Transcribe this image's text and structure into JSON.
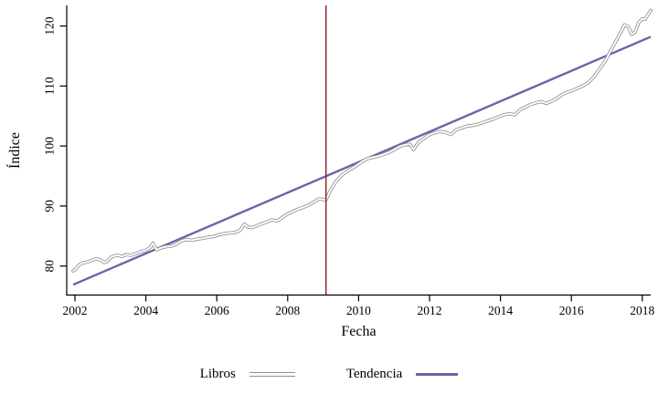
{
  "colors": {
    "background": "#ffffff",
    "axis": "#000000",
    "libros_outline": "#8f8f8f",
    "libros_core": "#ffffff",
    "tendencia": "#6b65a7",
    "event_line": "#8e1f22"
  },
  "chart_data": {
    "type": "line",
    "title": "",
    "xlabel": "Fecha",
    "ylabel": "Índice",
    "xlim": [
      2001.77,
      2018.45
    ],
    "ylim": [
      75.2,
      123.4
    ],
    "x_ticks": [
      2002,
      2004,
      2006,
      2008,
      2010,
      2012,
      2014,
      2016,
      2018
    ],
    "y_ticks": [
      80,
      90,
      100,
      110,
      120
    ],
    "grid": false,
    "legend_position": "bottom",
    "vline_x": 2009.08,
    "series": [
      {
        "name": "Libros",
        "style": "outlined-gray-line",
        "points": [
          [
            2001.95,
            79.2
          ],
          [
            2002.02,
            79.5
          ],
          [
            2002.1,
            80.1
          ],
          [
            2002.2,
            80.5
          ],
          [
            2002.3,
            80.6
          ],
          [
            2002.42,
            80.8
          ],
          [
            2002.53,
            81.1
          ],
          [
            2002.62,
            81.2
          ],
          [
            2002.72,
            81.0
          ],
          [
            2002.82,
            80.6
          ],
          [
            2002.92,
            80.8
          ],
          [
            2003.02,
            81.5
          ],
          [
            2003.12,
            81.7
          ],
          [
            2003.22,
            81.8
          ],
          [
            2003.32,
            81.6
          ],
          [
            2003.45,
            81.9
          ],
          [
            2003.58,
            81.8
          ],
          [
            2003.72,
            82.1
          ],
          [
            2003.85,
            82.4
          ],
          [
            2004.0,
            82.6
          ],
          [
            2004.12,
            83.1
          ],
          [
            2004.2,
            83.8
          ],
          [
            2004.3,
            82.7
          ],
          [
            2004.42,
            83.0
          ],
          [
            2004.55,
            83.2
          ],
          [
            2004.7,
            83.3
          ],
          [
            2004.85,
            83.6
          ],
          [
            2005.0,
            84.2
          ],
          [
            2005.15,
            84.4
          ],
          [
            2005.3,
            84.3
          ],
          [
            2005.45,
            84.5
          ],
          [
            2005.6,
            84.6
          ],
          [
            2005.75,
            84.8
          ],
          [
            2005.9,
            84.9
          ],
          [
            2006.05,
            85.2
          ],
          [
            2006.2,
            85.4
          ],
          [
            2006.35,
            85.5
          ],
          [
            2006.5,
            85.6
          ],
          [
            2006.65,
            85.9
          ],
          [
            2006.78,
            87.0
          ],
          [
            2006.88,
            86.5
          ],
          [
            2007.0,
            86.4
          ],
          [
            2007.12,
            86.7
          ],
          [
            2007.25,
            87.0
          ],
          [
            2007.4,
            87.3
          ],
          [
            2007.55,
            87.7
          ],
          [
            2007.7,
            87.5
          ],
          [
            2007.85,
            88.1
          ],
          [
            2008.0,
            88.7
          ],
          [
            2008.15,
            89.1
          ],
          [
            2008.3,
            89.5
          ],
          [
            2008.45,
            89.8
          ],
          [
            2008.6,
            90.2
          ],
          [
            2008.75,
            90.7
          ],
          [
            2008.88,
            91.2
          ],
          [
            2009.0,
            91.1
          ],
          [
            2009.08,
            91.0
          ],
          [
            2009.2,
            92.6
          ],
          [
            2009.35,
            94.0
          ],
          [
            2009.5,
            95.0
          ],
          [
            2009.65,
            95.7
          ],
          [
            2009.8,
            96.2
          ],
          [
            2009.95,
            96.8
          ],
          [
            2010.1,
            97.4
          ],
          [
            2010.25,
            97.9
          ],
          [
            2010.4,
            98.1
          ],
          [
            2010.55,
            98.3
          ],
          [
            2010.7,
            98.6
          ],
          [
            2010.85,
            98.9
          ],
          [
            2011.0,
            99.4
          ],
          [
            2011.15,
            99.9
          ],
          [
            2011.3,
            100.2
          ],
          [
            2011.45,
            100.3
          ],
          [
            2011.55,
            99.4
          ],
          [
            2011.7,
            100.7
          ],
          [
            2011.85,
            101.3
          ],
          [
            2012.0,
            101.9
          ],
          [
            2012.15,
            102.2
          ],
          [
            2012.3,
            102.4
          ],
          [
            2012.45,
            102.3
          ],
          [
            2012.6,
            101.9
          ],
          [
            2012.75,
            102.7
          ],
          [
            2012.9,
            103.0
          ],
          [
            2013.05,
            103.3
          ],
          [
            2013.2,
            103.4
          ],
          [
            2013.35,
            103.6
          ],
          [
            2013.5,
            103.9
          ],
          [
            2013.65,
            104.2
          ],
          [
            2013.8,
            104.5
          ],
          [
            2013.95,
            104.9
          ],
          [
            2014.1,
            105.2
          ],
          [
            2014.25,
            105.4
          ],
          [
            2014.4,
            105.2
          ],
          [
            2014.55,
            106.0
          ],
          [
            2014.7,
            106.5
          ],
          [
            2014.85,
            106.9
          ],
          [
            2015.0,
            107.2
          ],
          [
            2015.15,
            107.4
          ],
          [
            2015.3,
            107.1
          ],
          [
            2015.45,
            107.5
          ],
          [
            2015.6,
            108.0
          ],
          [
            2015.75,
            108.6
          ],
          [
            2015.9,
            109.0
          ],
          [
            2016.05,
            109.3
          ],
          [
            2016.2,
            109.7
          ],
          [
            2016.35,
            110.1
          ],
          [
            2016.5,
            110.7
          ],
          [
            2016.65,
            111.6
          ],
          [
            2016.8,
            112.9
          ],
          [
            2016.95,
            114.1
          ],
          [
            2017.1,
            115.8
          ],
          [
            2017.25,
            117.4
          ],
          [
            2017.4,
            119.0
          ],
          [
            2017.5,
            120.2
          ],
          [
            2017.6,
            119.9
          ],
          [
            2017.7,
            118.6
          ],
          [
            2017.8,
            119.0
          ],
          [
            2017.9,
            120.6
          ],
          [
            2018.0,
            121.2
          ],
          [
            2018.08,
            121.1
          ],
          [
            2018.16,
            121.9
          ],
          [
            2018.24,
            122.6
          ]
        ]
      },
      {
        "name": "Tendencia",
        "style": "solid-purple-line",
        "points": [
          [
            2001.95,
            76.9
          ],
          [
            2018.24,
            118.2
          ]
        ]
      }
    ]
  }
}
